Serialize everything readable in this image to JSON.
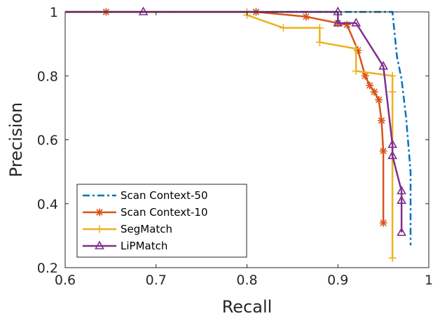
{
  "chart_data": {
    "type": "line",
    "title": "",
    "xlabel": "Recall",
    "ylabel": "Precision",
    "xlim": [
      0.6,
      1.0
    ],
    "ylim": [
      0.2,
      1.0
    ],
    "xticks": [
      "0.6",
      "0.7",
      "0.8",
      "0.9",
      "1"
    ],
    "yticks": [
      "0.2",
      "0.4",
      "0.6",
      "0.8",
      "1"
    ],
    "grid": false,
    "legend_position": "bottom-left",
    "series": [
      {
        "name": "Scan Context-50",
        "color": "#0072BD",
        "line_style": "dash-dot",
        "marker": "none",
        "x": [
          0.6,
          0.96,
          0.965,
          0.97,
          0.975,
          0.98,
          0.98,
          0.98
        ],
        "y": [
          1.0,
          1.0,
          0.86,
          0.79,
          0.67,
          0.5,
          0.35,
          0.27
        ]
      },
      {
        "name": "Scan Context-10",
        "color": "#D95319",
        "line_style": "solid",
        "marker": "asterisk",
        "x": [
          0.6,
          0.645,
          0.81,
          0.865,
          0.9,
          0.91,
          0.922,
          0.93,
          0.935,
          0.94,
          0.945,
          0.948,
          0.95,
          0.95
        ],
        "y": [
          1.0,
          1.0,
          1.0,
          0.985,
          0.965,
          0.96,
          0.88,
          0.8,
          0.77,
          0.75,
          0.725,
          0.66,
          0.565,
          0.34
        ]
      },
      {
        "name": "SegMatch",
        "color": "#EDB120",
        "line_style": "solid",
        "marker": "plus",
        "x": [
          0.6,
          0.8,
          0.8,
          0.84,
          0.88,
          0.88,
          0.92,
          0.92,
          0.96,
          0.96,
          0.96
        ],
        "y": [
          1.0,
          1.0,
          0.99,
          0.95,
          0.95,
          0.905,
          0.885,
          0.815,
          0.8,
          0.75,
          0.23
        ]
      },
      {
        "name": "LiPMatch",
        "color": "#7E2F8E",
        "line_style": "solid",
        "marker": "triangle",
        "x": [
          0.6,
          0.686,
          0.9,
          0.9,
          0.92,
          0.95,
          0.96,
          0.96,
          0.97,
          0.97,
          0.97
        ],
        "y": [
          1.0,
          1.0,
          1.0,
          0.965,
          0.965,
          0.83,
          0.585,
          0.55,
          0.44,
          0.41,
          0.31
        ]
      }
    ]
  }
}
